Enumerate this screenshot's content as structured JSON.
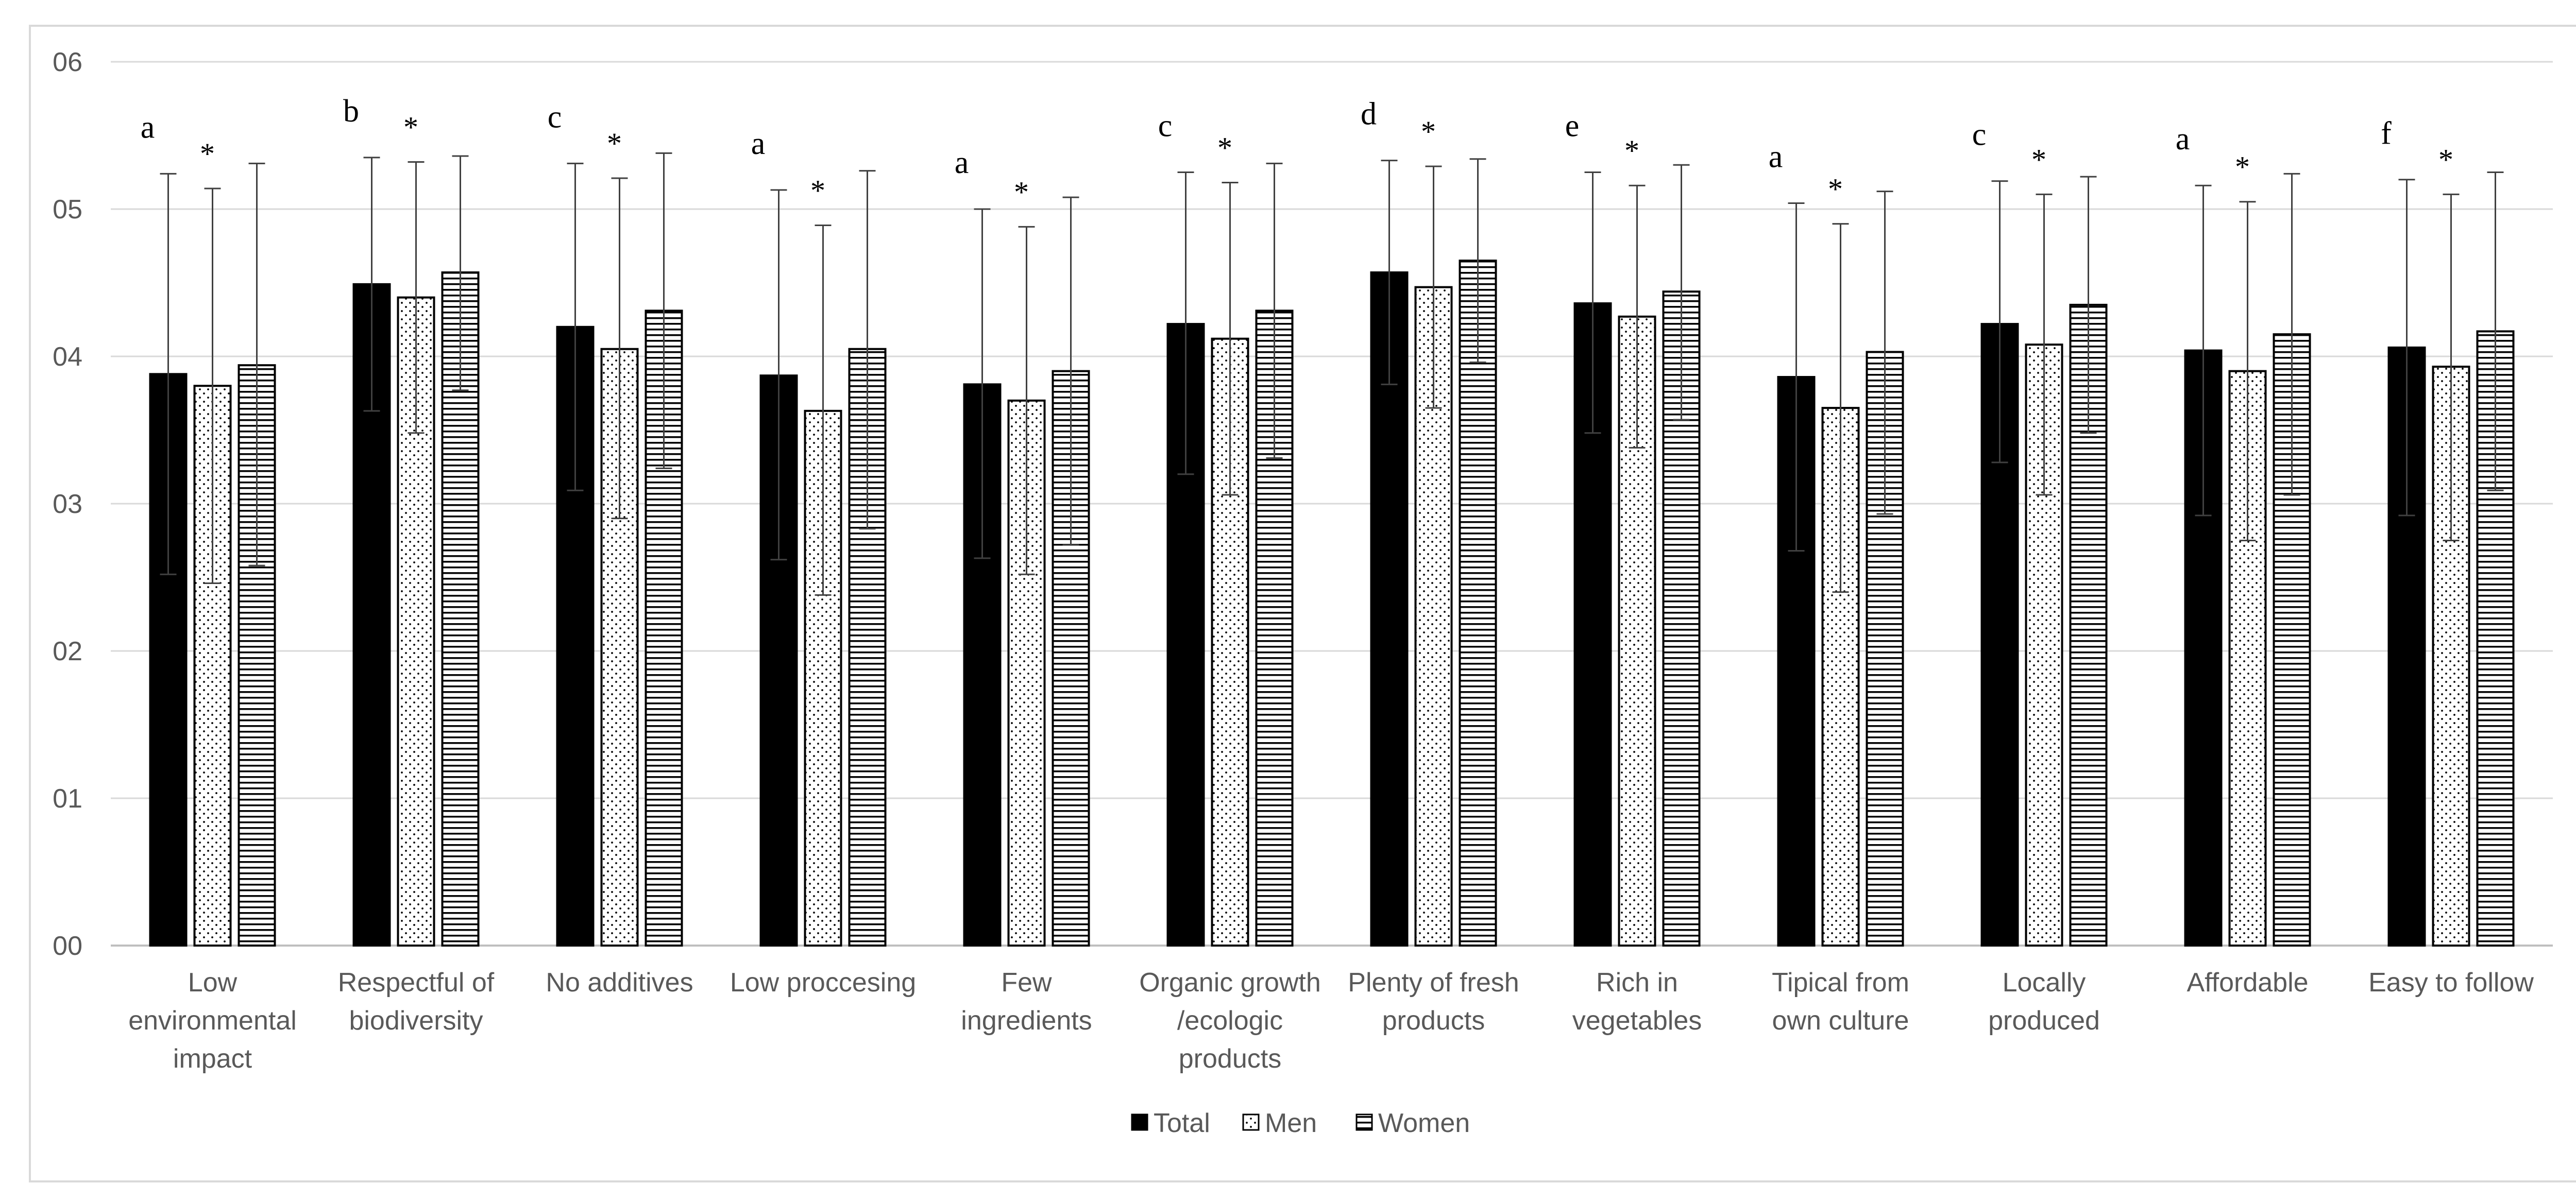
{
  "chart_data": {
    "type": "bar",
    "title": "",
    "xlabel": "",
    "ylabel": "",
    "ylim": [
      0,
      6
    ],
    "yticks": [
      "00",
      "01",
      "02",
      "03",
      "04",
      "05",
      "06"
    ],
    "grid": true,
    "legend_position": "bottom",
    "categories": [
      [
        "Low",
        "environmental",
        "impact"
      ],
      [
        "Respectful of",
        "biodiversity"
      ],
      [
        "No additives"
      ],
      [
        "Low proccesing"
      ],
      [
        "Few",
        "ingredients"
      ],
      [
        "Organic growth",
        "/ecologic",
        "products"
      ],
      [
        "Plenty of fresh",
        "products"
      ],
      [
        "Rich in",
        "vegetables"
      ],
      [
        "Tipical from",
        "own culture"
      ],
      [
        "Locally",
        "produced"
      ],
      [
        "Affordable"
      ],
      [
        "Easy to follow"
      ]
    ],
    "series": [
      {
        "name": "Total",
        "pattern": "solid",
        "color": "#000000",
        "values": [
          3.88,
          4.49,
          4.2,
          3.87,
          3.81,
          4.22,
          4.57,
          4.36,
          3.86,
          4.22,
          4.04,
          4.06
        ],
        "error_upper": [
          5.24,
          5.35,
          5.31,
          5.13,
          5.0,
          5.25,
          5.33,
          5.25,
          5.04,
          5.19,
          5.16,
          5.2
        ],
        "error_lower": [
          2.52,
          3.63,
          3.09,
          2.62,
          2.63,
          3.2,
          3.81,
          3.48,
          2.68,
          3.28,
          2.92,
          2.92
        ]
      },
      {
        "name": "Men",
        "pattern": "dots",
        "color": "#000000",
        "values": [
          3.8,
          4.4,
          4.05,
          3.63,
          3.7,
          4.12,
          4.47,
          4.27,
          3.65,
          4.08,
          3.9,
          3.93
        ],
        "error_upper": [
          5.14,
          5.32,
          5.21,
          4.89,
          4.88,
          5.18,
          5.29,
          5.16,
          4.9,
          5.1,
          5.05,
          5.1
        ],
        "error_lower": [
          2.46,
          3.48,
          2.9,
          2.38,
          2.52,
          3.06,
          3.65,
          3.38,
          2.4,
          3.06,
          2.75,
          2.75
        ]
      },
      {
        "name": "Women",
        "pattern": "horizontal-lines",
        "color": "#000000",
        "values": [
          3.94,
          4.57,
          4.31,
          4.05,
          3.9,
          4.31,
          4.65,
          4.44,
          4.03,
          4.35,
          4.15,
          4.17
        ],
        "error_upper": [
          5.31,
          5.36,
          5.38,
          5.26,
          5.08,
          5.31,
          5.34,
          5.3,
          5.12,
          5.22,
          5.24,
          5.25
        ],
        "error_lower": [
          2.58,
          3.77,
          3.24,
          2.83,
          2.72,
          3.31,
          3.96,
          3.57,
          2.93,
          3.48,
          3.06,
          3.09
        ]
      }
    ],
    "annotations": {
      "letters": [
        "a",
        "b",
        "c",
        "a",
        "a",
        "c",
        "d",
        "e",
        "a",
        "c",
        "a",
        "f"
      ],
      "stars": [
        "*",
        "*",
        "*",
        "*",
        "*",
        "*",
        "*",
        "*",
        "*",
        "*",
        "*",
        "*"
      ]
    }
  }
}
